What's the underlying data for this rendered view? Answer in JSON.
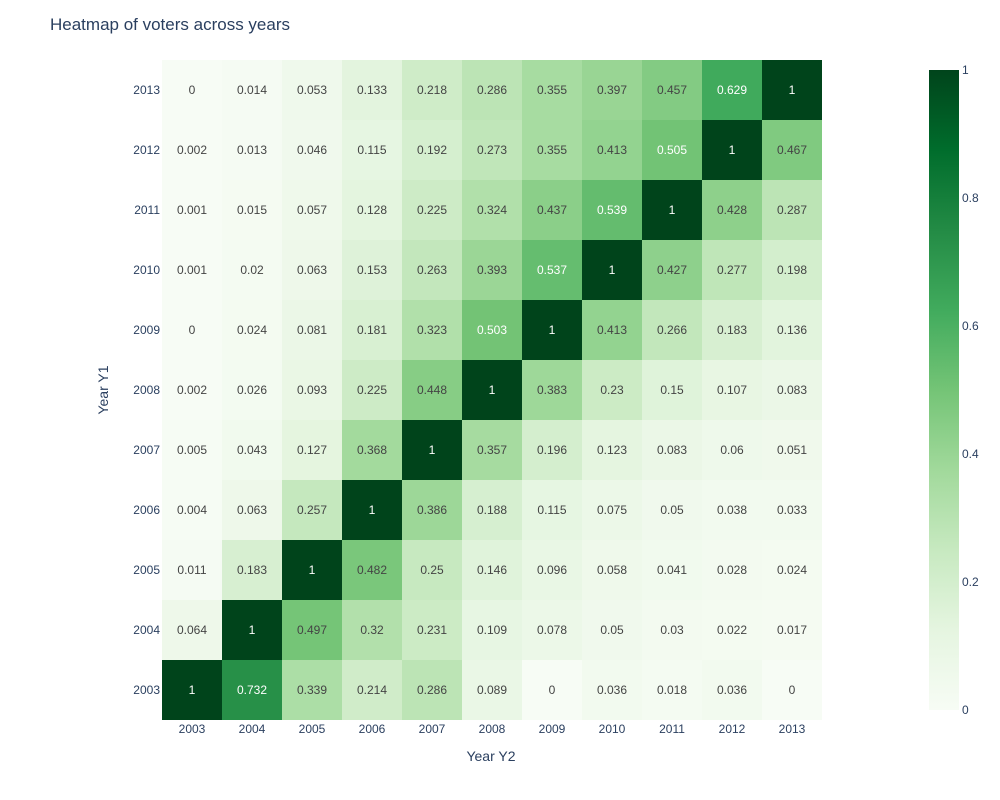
{
  "chart_data": {
    "type": "heatmap",
    "title": "Heatmap of voters across years",
    "xlabel": "Year Y2",
    "ylabel": "Year Y1",
    "x": [
      "2003",
      "2004",
      "2005",
      "2006",
      "2007",
      "2008",
      "2009",
      "2010",
      "2011",
      "2012",
      "2013"
    ],
    "y": [
      "2003",
      "2004",
      "2005",
      "2006",
      "2007",
      "2008",
      "2009",
      "2010",
      "2011",
      "2012",
      "2013"
    ],
    "z": [
      [
        "1",
        "0.732",
        "0.339",
        "0.214",
        "0.286",
        "0.089",
        "0",
        "0.036",
        "0.018",
        "0.036",
        "0"
      ],
      [
        "0.064",
        "1",
        "0.497",
        "0.32",
        "0.231",
        "0.109",
        "0.078",
        "0.05",
        "0.03",
        "0.022",
        "0.017"
      ],
      [
        "0.011",
        "0.183",
        "1",
        "0.482",
        "0.25",
        "0.146",
        "0.096",
        "0.058",
        "0.041",
        "0.028",
        "0.024"
      ],
      [
        "0.004",
        "0.063",
        "0.257",
        "1",
        "0.386",
        "0.188",
        "0.115",
        "0.075",
        "0.05",
        "0.038",
        "0.033"
      ],
      [
        "0.005",
        "0.043",
        "0.127",
        "0.368",
        "1",
        "0.357",
        "0.196",
        "0.123",
        "0.083",
        "0.06",
        "0.051"
      ],
      [
        "0.002",
        "0.026",
        "0.093",
        "0.225",
        "0.448",
        "1",
        "0.383",
        "0.23",
        "0.15",
        "0.107",
        "0.083"
      ],
      [
        "0",
        "0.024",
        "0.081",
        "0.181",
        "0.323",
        "0.503",
        "1",
        "0.413",
        "0.266",
        "0.183",
        "0.136"
      ],
      [
        "0.001",
        "0.02",
        "0.063",
        "0.153",
        "0.263",
        "0.393",
        "0.537",
        "1",
        "0.427",
        "0.277",
        "0.198"
      ],
      [
        "0.001",
        "0.015",
        "0.057",
        "0.128",
        "0.225",
        "0.324",
        "0.437",
        "0.539",
        "1",
        "0.428",
        "0.287"
      ],
      [
        "0.002",
        "0.013",
        "0.046",
        "0.115",
        "0.192",
        "0.273",
        "0.355",
        "0.413",
        "0.505",
        "1",
        "0.467"
      ],
      [
        "0",
        "0.014",
        "0.053",
        "0.133",
        "0.218",
        "0.286",
        "0.355",
        "0.397",
        "0.457",
        "0.629",
        "1"
      ]
    ],
    "zlim": [
      0,
      1
    ],
    "colorscale": "Greens",
    "colorbar": {
      "ticks": [
        "0",
        "0.2",
        "0.4",
        "0.6",
        "0.8",
        "1"
      ],
      "position": "right"
    },
    "grid": false
  }
}
